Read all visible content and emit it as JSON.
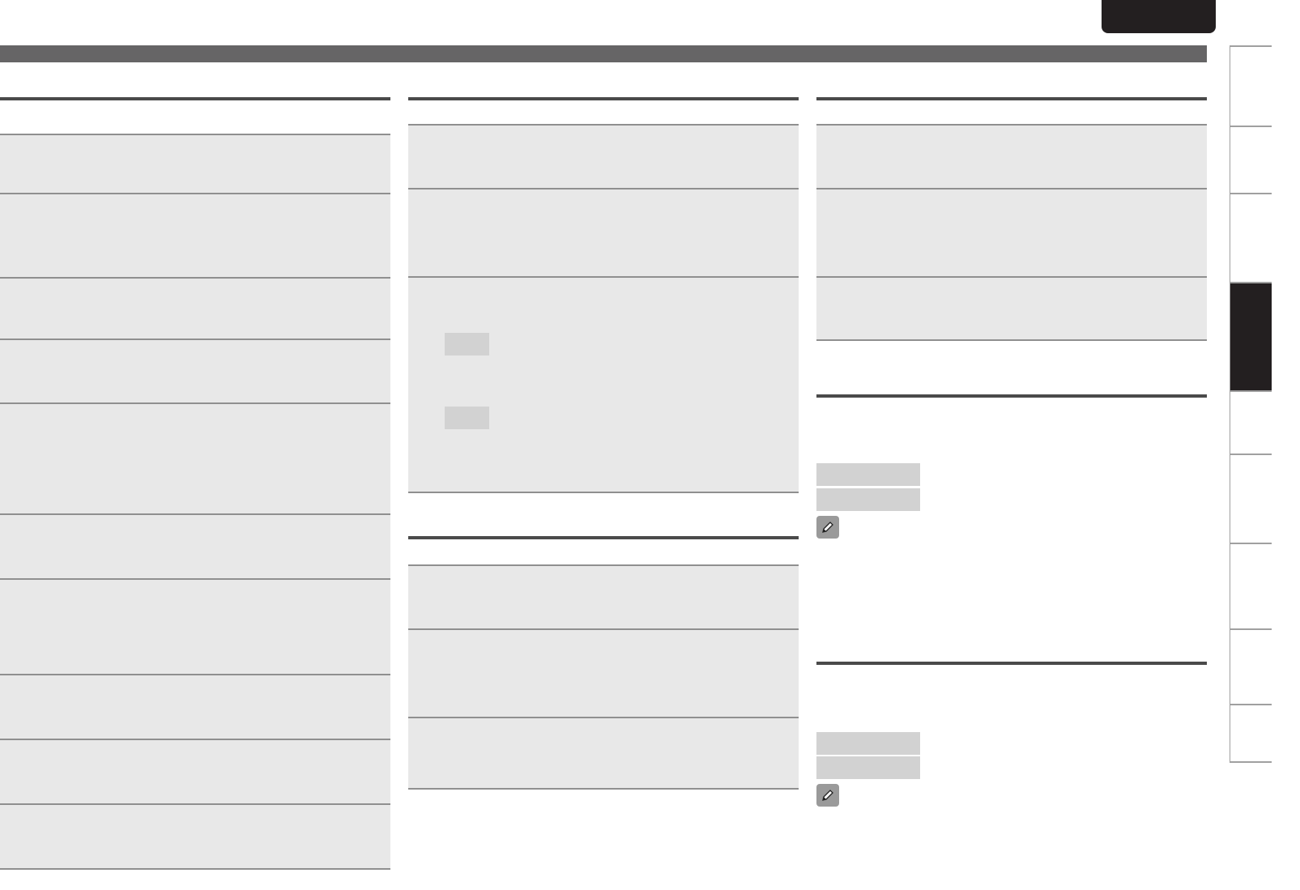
{
  "colors": {
    "header_bar": "#666566",
    "top_tab": "#231f20",
    "section_rule": "#4a4a4a",
    "row_fill": "#e8e8e8",
    "row_border": "#8f8f8f",
    "chip_fill": "#d2d2d2",
    "active_side_tab": "#231f20"
  },
  "icons": {
    "note": "pencil-icon"
  },
  "side_tabs": {
    "active_index": 3
  }
}
